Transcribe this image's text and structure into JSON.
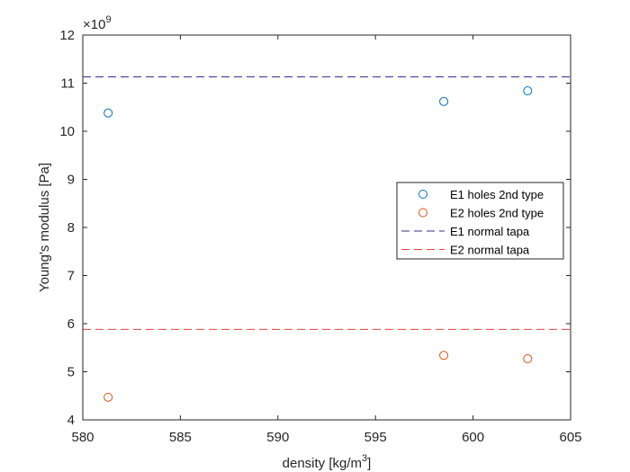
{
  "chart_data": {
    "type": "scatter",
    "xlabel": "density [kg/m",
    "xlabel_sup": "3",
    "xlabel_tail": "]",
    "ylabel": "Young's modulus [Pa]",
    "exponent_base": "×10",
    "exponent_power": "9",
    "xlim": [
      580,
      605
    ],
    "ylim": [
      4,
      12
    ],
    "x_ticks": [
      "580",
      "585",
      "590",
      "595",
      "600",
      "605"
    ],
    "y_ticks": [
      "4",
      "5",
      "6",
      "7",
      "8",
      "9",
      "10",
      "11",
      "12"
    ],
    "grid": false,
    "legend_position": "right-center",
    "series": [
      {
        "name": "E1 holes 2nd type",
        "kind": "markers",
        "color": "#0072BD",
        "points": [
          {
            "x": 581.3,
            "y": 10.38
          },
          {
            "x": 598.5,
            "y": 10.62
          },
          {
            "x": 602.8,
            "y": 10.84
          }
        ]
      },
      {
        "name": "E2 holes 2nd type",
        "kind": "markers",
        "color": "#D95319",
        "points": [
          {
            "x": 581.3,
            "y": 4.47
          },
          {
            "x": 598.5,
            "y": 5.34
          },
          {
            "x": 602.8,
            "y": 5.27
          }
        ]
      },
      {
        "name": "E1 normal tapa",
        "kind": "hline",
        "color": "#2E3192",
        "y": 11.13
      },
      {
        "name": "E2 normal tapa",
        "kind": "hline",
        "color": "#E8413C",
        "y": 5.88
      }
    ]
  }
}
